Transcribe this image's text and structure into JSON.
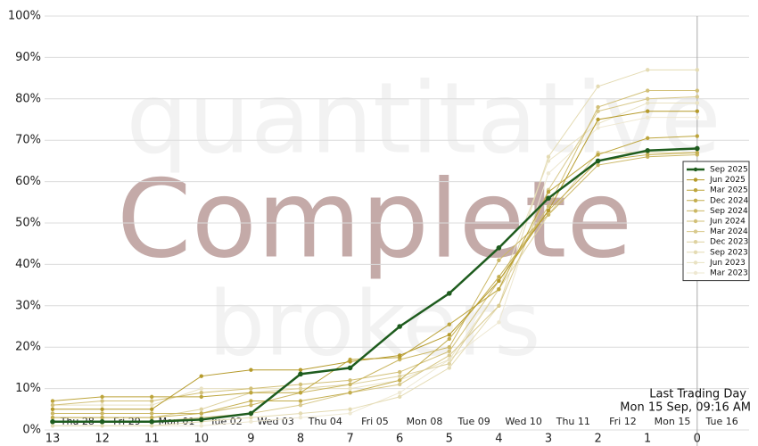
{
  "chart_data": {
    "type": "line",
    "watermark": [
      "quantitative",
      "Complete",
      "brokers"
    ],
    "categories": [
      "13",
      "12",
      "11",
      "10",
      "9",
      "8",
      "7",
      "6",
      "5",
      "4",
      "3",
      "2",
      "1",
      "0"
    ],
    "date_labels": [
      "Thu 28",
      "Fri 29",
      "Mon 01",
      "Tue 02",
      "Wed 03",
      "Thu 04",
      "Fri 05",
      "Mon 08",
      "Tue 09",
      "Wed 10",
      "Thu 11",
      "Fri 12",
      "Mon 15",
      "Tue 16"
    ],
    "annotation": [
      "Last Trading Day",
      "Mon 15 Sep, 09:16 AM"
    ],
    "ylim": [
      0,
      100
    ],
    "yticks": [
      {
        "value": 0,
        "label": "0%"
      },
      {
        "value": 10,
        "label": "10%"
      },
      {
        "value": 20,
        "label": "20%"
      },
      {
        "value": 30,
        "label": "30%"
      },
      {
        "value": 40,
        "label": "40%"
      },
      {
        "value": 50,
        "label": "50%"
      },
      {
        "value": 60,
        "label": "60%"
      },
      {
        "value": 70,
        "label": "70%"
      },
      {
        "value": 80,
        "label": "80%"
      },
      {
        "value": 90,
        "label": "90%"
      },
      {
        "value": 100,
        "label": "100%"
      }
    ],
    "grid": true,
    "series": [
      {
        "name": "Sep 2025",
        "color": "#1e5c1e",
        "values": [
          2,
          2,
          2,
          2.5,
          4,
          13.5,
          15,
          25,
          33,
          44,
          56,
          65,
          67.5,
          68
        ]
      },
      {
        "name": "Jun 2025",
        "color": "#b59a2a",
        "values": [
          5,
          5,
          5,
          13,
          14.5,
          14.5,
          16.5,
          18,
          23,
          36,
          53,
          75,
          77,
          77
        ]
      },
      {
        "name": "Mar 2025",
        "color": "#bda53c",
        "values": [
          7,
          8,
          8,
          8,
          9,
          9,
          17,
          17.5,
          25.5,
          34,
          57.5,
          66.5,
          70.5,
          71
        ]
      },
      {
        "name": "Dec 2024",
        "color": "#c4ae50",
        "values": [
          3,
          3,
          3,
          4,
          7,
          7,
          9,
          12,
          22,
          37,
          53,
          65,
          66.5,
          67
        ]
      },
      {
        "name": "Sep 2024",
        "color": "#cbb764",
        "values": [
          4,
          4,
          4,
          4,
          6,
          9,
          11,
          17,
          20,
          41,
          52,
          64,
          66,
          66.5
        ]
      },
      {
        "name": "Jun 2024",
        "color": "#d2c078",
        "values": [
          6,
          7,
          7,
          9,
          10,
          11,
          12,
          14,
          19,
          36,
          54,
          78,
          82,
          82
        ]
      },
      {
        "name": "Mar 2024",
        "color": "#d8c98c",
        "values": [
          2,
          2,
          2,
          3,
          4,
          6,
          9,
          11,
          18,
          30,
          58,
          77,
          80,
          80.5
        ]
      },
      {
        "name": "Dec 2023",
        "color": "#ded2a0",
        "values": [
          3,
          3,
          3,
          5,
          9,
          10,
          11,
          13,
          16,
          34,
          52,
          67,
          67,
          67
        ]
      },
      {
        "name": "Sep 2023",
        "color": "#e4dbb3",
        "values": [
          1,
          1,
          1,
          2,
          3,
          4,
          5,
          8,
          15,
          30,
          66,
          83,
          87,
          87
        ]
      },
      {
        "name": "Jun 2023",
        "color": "#e9e2c3",
        "values": [
          6,
          6,
          6,
          10,
          10,
          10,
          10,
          12,
          17,
          34,
          65,
          74,
          79,
          79
        ]
      },
      {
        "name": "Mar 2023",
        "color": "#eee8d2",
        "values": [
          1,
          1,
          1,
          1,
          2,
          3,
          4,
          9,
          17,
          26,
          62,
          73,
          75.5,
          75.5
        ]
      }
    ]
  }
}
